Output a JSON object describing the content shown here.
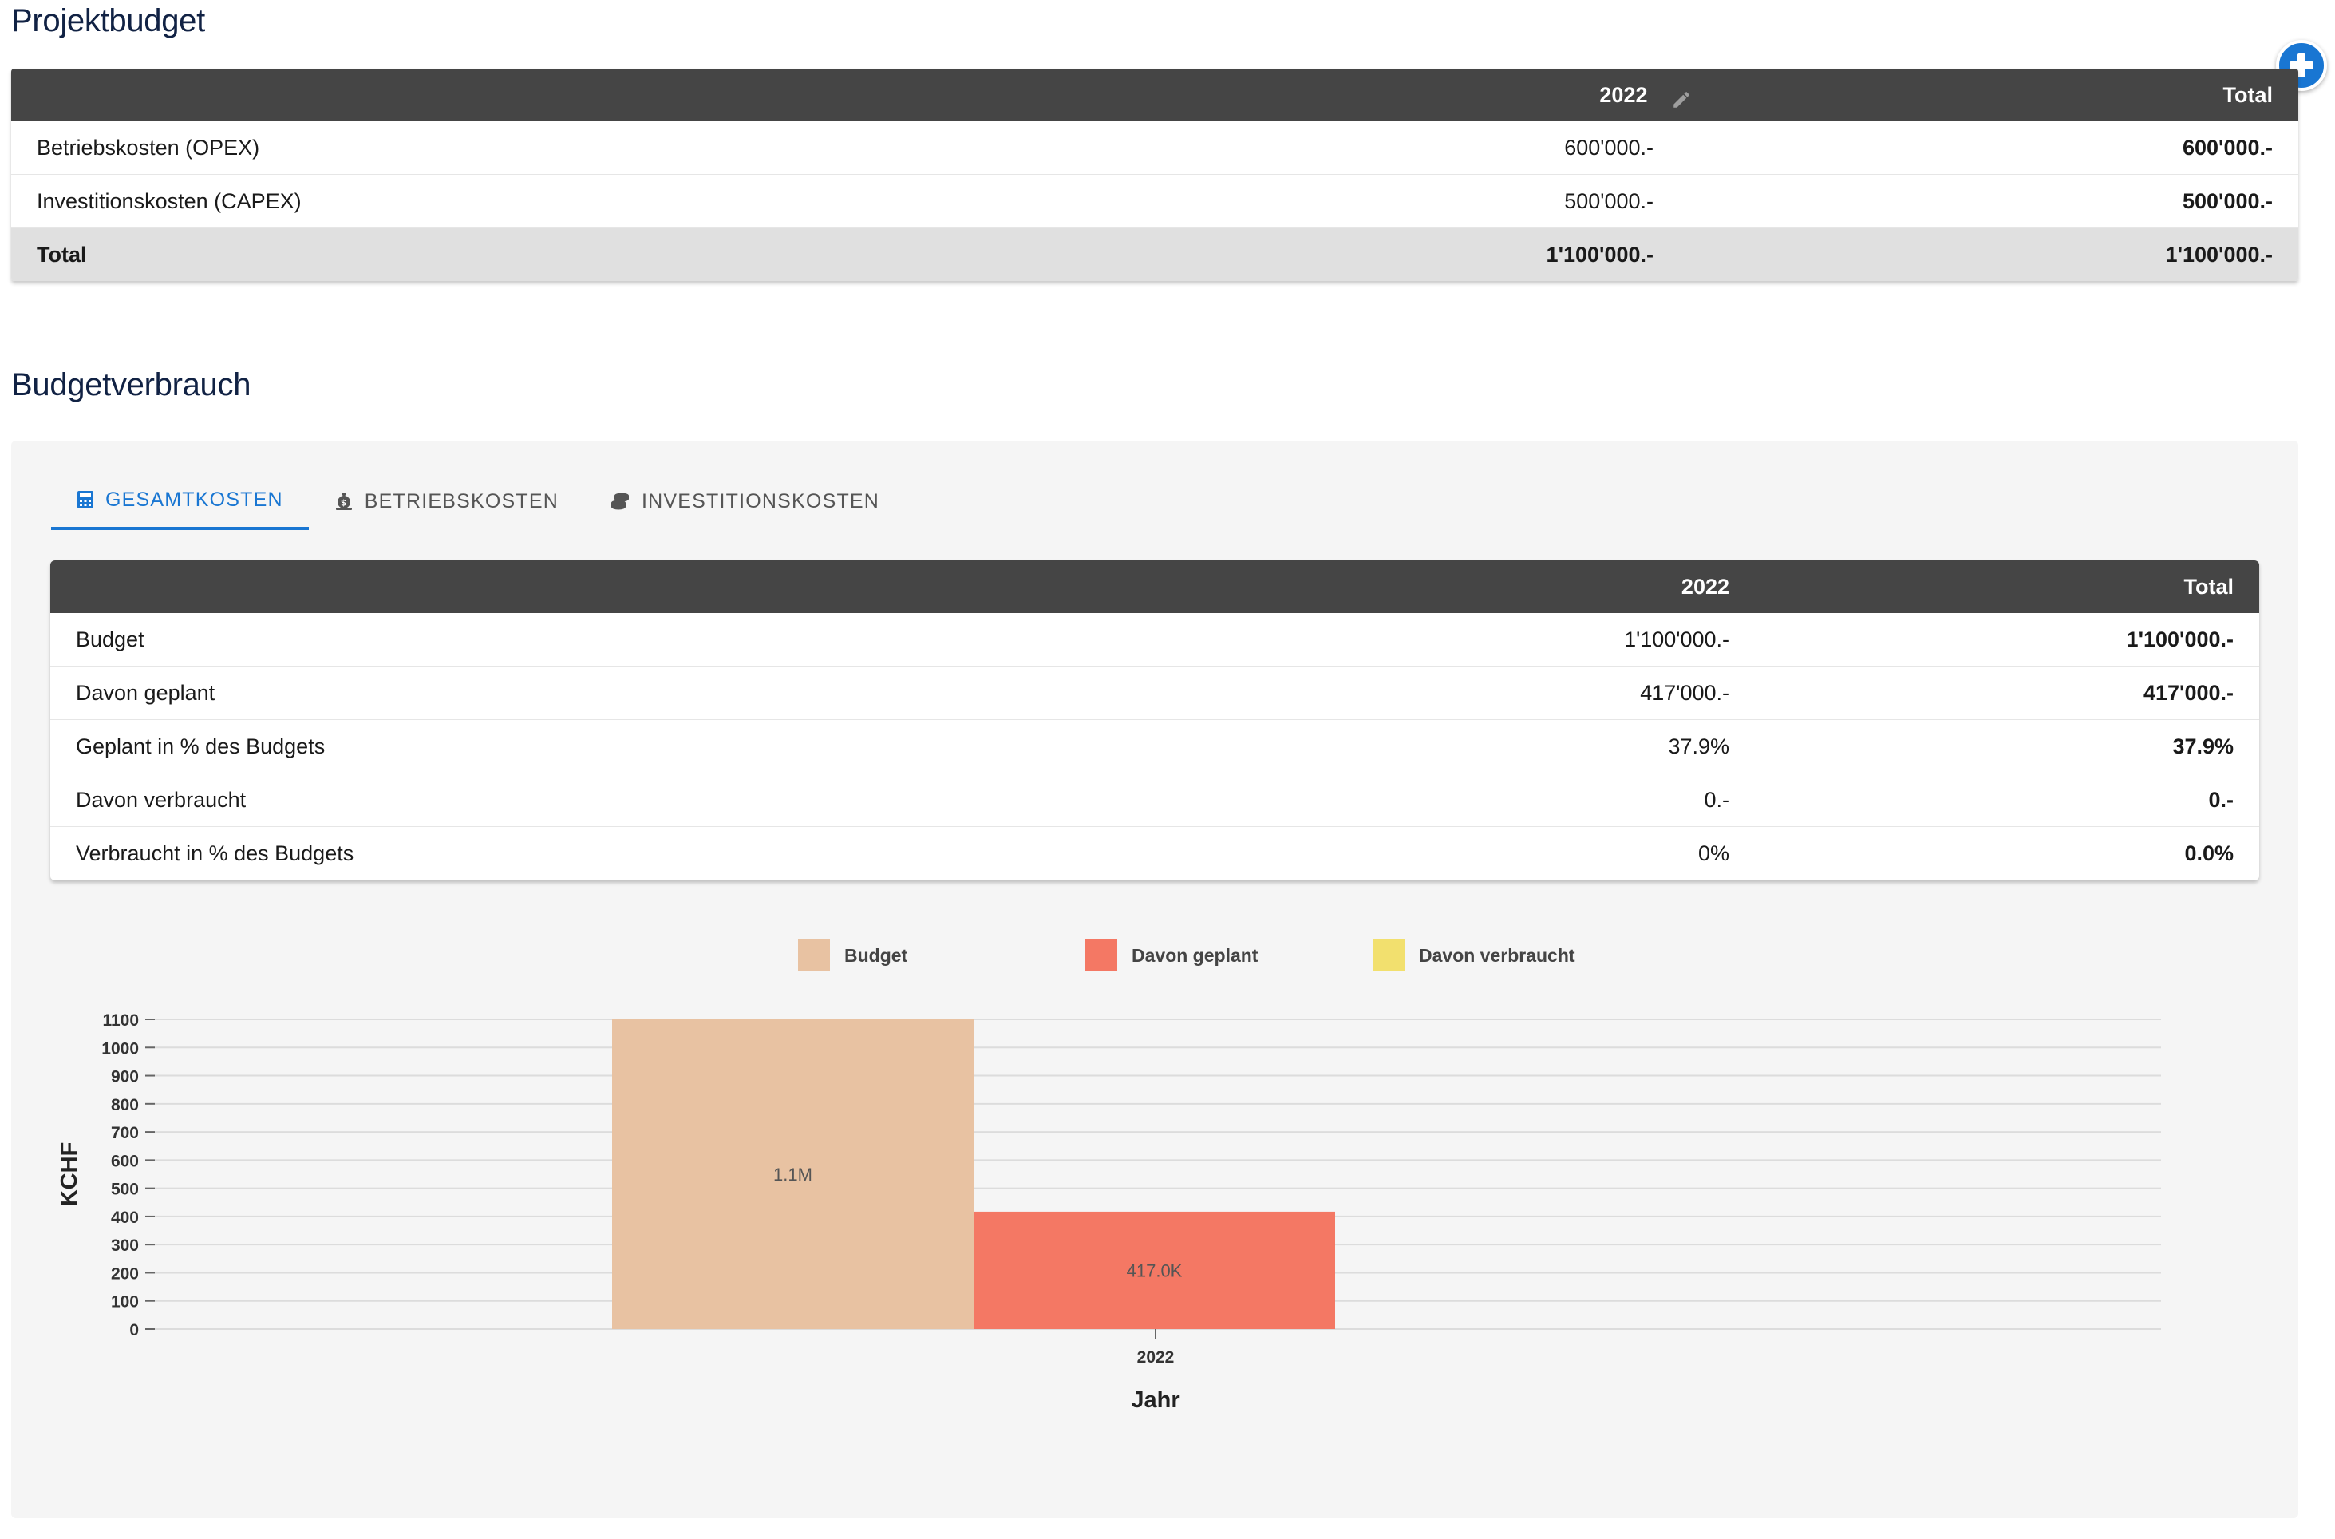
{
  "projektbudget": {
    "title": "Projektbudget",
    "headers": {
      "year": "2022",
      "total": "Total"
    },
    "rows": [
      {
        "label": "Betriebskosten (OPEX)",
        "year": "600'000.-",
        "total": "600'000.-"
      },
      {
        "label": "Investitionskosten (CAPEX)",
        "year": "500'000.-",
        "total": "500'000.-"
      }
    ],
    "total_row": {
      "label": "Total",
      "year": "1'100'000.-",
      "total": "1'100'000.-"
    }
  },
  "budgetverbrauch": {
    "title": "Budgetverbrauch",
    "tabs": [
      {
        "label": "GESAMTKOSTEN",
        "icon": "calculator-icon",
        "active": true
      },
      {
        "label": "BETRIEBSKOSTEN",
        "icon": "money-bag-icon",
        "active": false
      },
      {
        "label": "INVESTITIONSKOSTEN",
        "icon": "coins-icon",
        "active": false
      }
    ],
    "headers": {
      "year": "2022",
      "total": "Total"
    },
    "rows": [
      {
        "label": "Budget",
        "year": "1'100'000.-",
        "total": "1'100'000.-"
      },
      {
        "label": "Davon geplant",
        "year": "417'000.-",
        "total": "417'000.-"
      },
      {
        "label": "Geplant in % des Budgets",
        "year": "37.9%",
        "total": "37.9%"
      },
      {
        "label": "Davon verbraucht",
        "year": "0.-",
        "total": "0.-"
      },
      {
        "label": "Verbraucht in % des Budgets",
        "year": "0%",
        "total": "0.0%"
      }
    ]
  },
  "colors": {
    "accent": "#1976d2",
    "header_bg": "#454545",
    "budget": "#e8c2a2",
    "geplant": "#f47864",
    "verbraucht": "#f2e06e"
  },
  "chart_data": {
    "type": "bar",
    "categories": [
      "2022"
    ],
    "series": [
      {
        "name": "Budget",
        "values": [
          1100
        ],
        "label": "1.1M"
      },
      {
        "name": "Davon geplant",
        "values": [
          417
        ],
        "label": "417.0K"
      },
      {
        "name": "Davon verbraucht",
        "values": [
          0
        ],
        "label": ""
      }
    ],
    "xlabel": "Jahr",
    "ylabel": "KCHF",
    "ylim": [
      0,
      1100
    ],
    "yticks": [
      0,
      100,
      200,
      300,
      400,
      500,
      600,
      700,
      800,
      900,
      1000,
      1100
    ],
    "grid": true,
    "legend": "top-center"
  }
}
